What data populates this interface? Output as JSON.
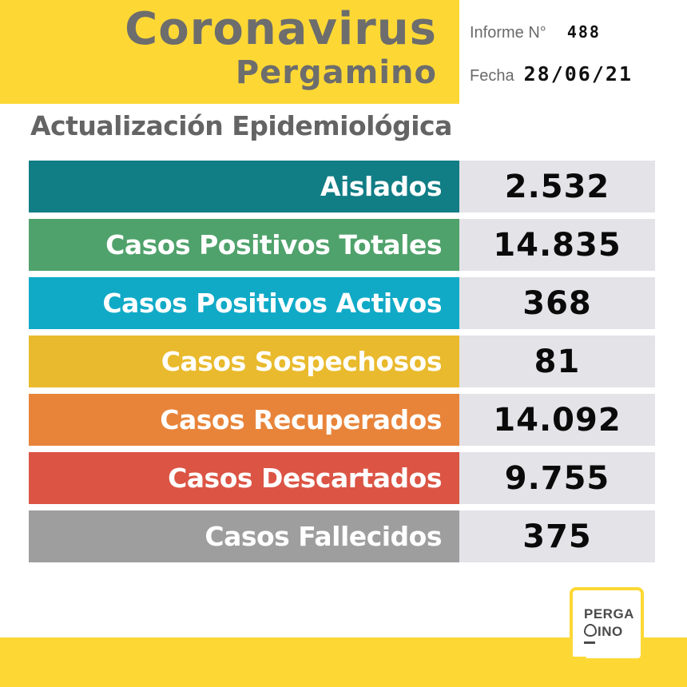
{
  "header": {
    "title": "Coronavirus",
    "subtitle": "Pergamino",
    "informe_label": "Informe N°",
    "informe_value": "488",
    "fecha_label": "Fecha",
    "fecha_value": "28/06/21"
  },
  "section_title": "Actualización Epidemiológica",
  "stats": [
    {
      "label": "Aislados",
      "value": "2.532",
      "color": "#117d85"
    },
    {
      "label": "Casos Positivos Totales",
      "value": "14.835",
      "color": "#4fa26b"
    },
    {
      "label": "Casos Positivos Activos",
      "value": "368",
      "color": "#10aac7"
    },
    {
      "label": "Casos Sospechosos",
      "value": "81",
      "color": "#e9ba2d"
    },
    {
      "label": "Casos Recuperados",
      "value": "14.092",
      "color": "#e8843a"
    },
    {
      "label": "Casos Descartados",
      "value": "9.755",
      "color": "#db5444"
    },
    {
      "label": "Casos Fallecidos",
      "value": "375",
      "color": "#9e9e9e"
    }
  ],
  "logo": {
    "line1": "PERGA",
    "line2": "INO",
    "brand_color": "#fdd835"
  }
}
